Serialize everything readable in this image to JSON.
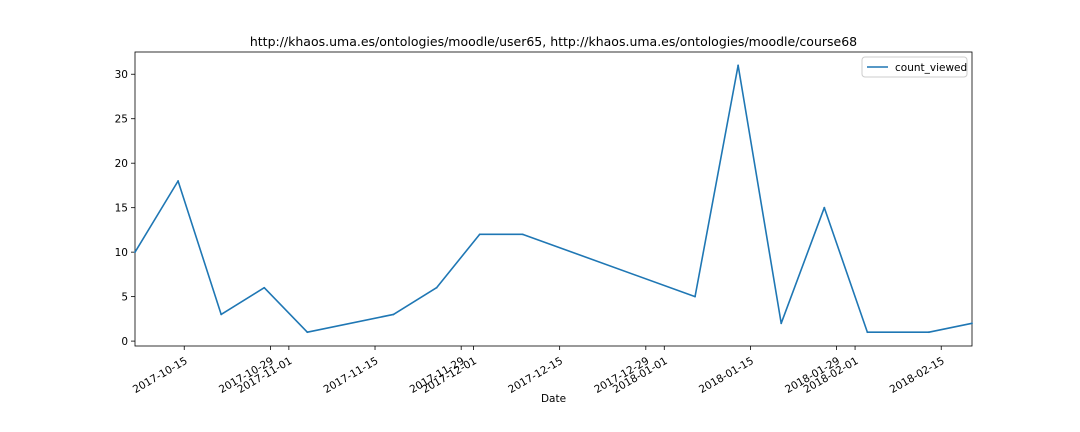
{
  "chart_data": {
    "type": "line",
    "title": "http://khaos.uma.es/ontologies/moodle/user65, http://khaos.uma.es/ontologies/moodle/course68",
    "xlabel": "Date",
    "ylabel": "",
    "x_type": "date",
    "xlim": [
      "2017-10-07",
      "2018-02-20"
    ],
    "ylim": [
      -0.55,
      32.5
    ],
    "x_ticks": [
      "2017-10-15",
      "2017-10-29",
      "2017-11-01",
      "2017-11-15",
      "2017-11-29",
      "2017-12-01",
      "2017-12-15",
      "2017-12-29",
      "2018-01-01",
      "2018-01-15",
      "2018-01-29",
      "2018-02-01",
      "2018-02-15"
    ],
    "y_ticks": [
      0,
      5,
      10,
      15,
      20,
      25,
      30
    ],
    "grid": false,
    "legend_position": "top-right",
    "series": [
      {
        "name": "count_viewed",
        "color": "#1f77b4",
        "x": [
          "2017-10-07",
          "2017-10-14",
          "2017-10-21",
          "2017-10-28",
          "2017-11-04",
          "2017-11-18",
          "2017-11-25",
          "2017-12-02",
          "2017-12-09",
          "2018-01-06",
          "2018-01-13",
          "2018-01-20",
          "2018-01-27",
          "2018-02-03",
          "2018-02-13",
          "2018-02-20"
        ],
        "values": [
          10,
          18,
          3,
          6,
          1,
          3,
          6,
          12,
          12,
          5,
          31,
          2,
          15,
          1,
          1,
          2
        ]
      }
    ]
  }
}
